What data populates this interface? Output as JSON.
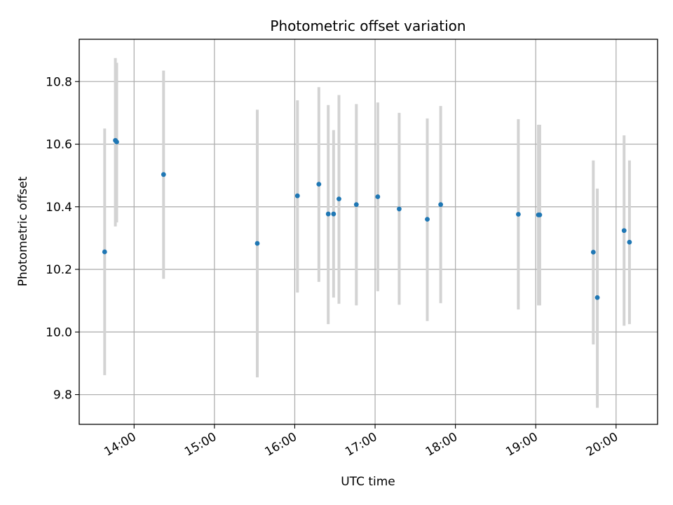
{
  "chart_data": {
    "type": "scatter",
    "title": "Photometric offset variation",
    "xlabel": "UTC time",
    "ylabel": "Photometric offset",
    "xlim": [
      "13:19",
      "20:31"
    ],
    "ylim": [
      9.705,
      10.935
    ],
    "x_ticks": [
      "14:00",
      "15:00",
      "16:00",
      "17:00",
      "18:00",
      "19:00",
      "20:00"
    ],
    "y_ticks": [
      "9.8",
      "10.0",
      "10.2",
      "10.4",
      "10.6",
      "10.8"
    ],
    "grid": true,
    "x_tick_rotation": 30,
    "colors": {
      "point": "#1f77b4",
      "errorbar": "#d3d3d3",
      "grid": "#b0b0b0"
    },
    "points": [
      {
        "time": "13:38",
        "y": 10.256,
        "err_low": 9.862,
        "err_high": 10.65
      },
      {
        "time": "13:46",
        "y": 10.612,
        "err_low": 10.337,
        "err_high": 10.875
      },
      {
        "time": "13:47",
        "y": 10.607,
        "err_low": 10.35,
        "err_high": 10.86
      },
      {
        "time": "14:22",
        "y": 10.503,
        "err_low": 10.17,
        "err_high": 10.835
      },
      {
        "time": "15:32",
        "y": 10.283,
        "err_low": 9.855,
        "err_high": 10.71
      },
      {
        "time": "16:02",
        "y": 10.435,
        "err_low": 10.126,
        "err_high": 10.74
      },
      {
        "time": "16:18",
        "y": 10.472,
        "err_low": 10.16,
        "err_high": 10.782
      },
      {
        "time": "16:25",
        "y": 10.377,
        "err_low": 10.025,
        "err_high": 10.725
      },
      {
        "time": "16:29",
        "y": 10.377,
        "err_low": 10.11,
        "err_high": 10.645
      },
      {
        "time": "16:33",
        "y": 10.425,
        "err_low": 10.09,
        "err_high": 10.757
      },
      {
        "time": "16:46",
        "y": 10.407,
        "err_low": 10.085,
        "err_high": 10.728
      },
      {
        "time": "17:02",
        "y": 10.432,
        "err_low": 10.13,
        "err_high": 10.733
      },
      {
        "time": "17:18",
        "y": 10.393,
        "err_low": 10.087,
        "err_high": 10.7
      },
      {
        "time": "17:39",
        "y": 10.36,
        "err_low": 10.035,
        "err_high": 10.682
      },
      {
        "time": "17:49",
        "y": 10.407,
        "err_low": 10.092,
        "err_high": 10.722
      },
      {
        "time": "18:47",
        "y": 10.376,
        "err_low": 10.072,
        "err_high": 10.68
      },
      {
        "time": "19:02",
        "y": 10.374,
        "err_low": 10.085,
        "err_high": 10.662
      },
      {
        "time": "19:03",
        "y": 10.374,
        "err_low": 10.085,
        "err_high": 10.662
      },
      {
        "time": "19:43",
        "y": 10.255,
        "err_low": 9.96,
        "err_high": 10.548
      },
      {
        "time": "19:46",
        "y": 10.11,
        "err_low": 9.758,
        "err_high": 10.458
      },
      {
        "time": "20:06",
        "y": 10.324,
        "err_low": 10.02,
        "err_high": 10.628
      },
      {
        "time": "20:10",
        "y": 10.287,
        "err_low": 10.025,
        "err_high": 10.548
      }
    ]
  }
}
